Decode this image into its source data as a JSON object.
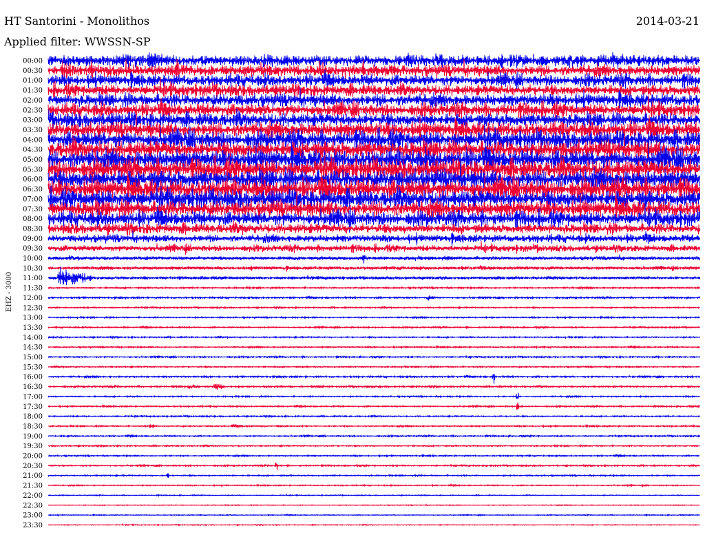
{
  "header": {
    "station": "HT Santorini - Monolithos",
    "date": "2014-03-21",
    "filter": "Applied filter: WWSSN-SP"
  },
  "chart_data": {
    "type": "line",
    "title": "HT Santorini - Monolithos",
    "date": "2014-03-21",
    "filter": "Applied filter: WWSSN-SP",
    "ylabel": "EHZ - 3000",
    "xlabel": "",
    "time_labels": [
      "00:00",
      "00:30",
      "01:00",
      "01:30",
      "02:00",
      "02:30",
      "03:00",
      "03:30",
      "04:00",
      "04:30",
      "05:00",
      "05:30",
      "06:00",
      "06:30",
      "07:00",
      "07:30",
      "08:00",
      "08:30",
      "09:00",
      "09:30",
      "10:00",
      "10:30",
      "11:00",
      "11:30",
      "12:00",
      "12:30",
      "13:00",
      "13:30",
      "14:00",
      "14:30",
      "15:00",
      "15:30",
      "16:00",
      "16:30",
      "17:00",
      "17:30",
      "18:00",
      "18:30",
      "19:00",
      "19:30",
      "20:00",
      "20:30",
      "21:00",
      "21:30",
      "22:00",
      "22:30",
      "23:00",
      "23:30"
    ],
    "trace_colors": [
      "#0000ee",
      "#ee0033"
    ],
    "line_amplitude": [
      9,
      9,
      9,
      9,
      10,
      10,
      11,
      12,
      13,
      14,
      15,
      15,
      15,
      15,
      14,
      13,
      11,
      8,
      6,
      5,
      3,
      2.5,
      2,
      1.2,
      1.2,
      1,
      1,
      1,
      1,
      1,
      1,
      1,
      1.2,
      1.2,
      1,
      1,
      1,
      1,
      1,
      1,
      1,
      1,
      1,
      0.8,
      0.6,
      0.6,
      0.6,
      0.6
    ],
    "events": [
      {
        "line": "11:00",
        "minute_offset": 0.5,
        "amplitude": 22,
        "duration_min": 1.5
      },
      {
        "line": "10:00",
        "minute_offset": 14.5,
        "amplitude": 10,
        "duration_min": 0.2
      },
      {
        "line": "12:00",
        "minute_offset": 17.5,
        "amplitude": 6,
        "duration_min": 0.3
      },
      {
        "line": "16:30",
        "minute_offset": 6.5,
        "amplitude": 5,
        "duration_min": 0.5
      },
      {
        "line": "16:30",
        "minute_offset": 7.7,
        "amplitude": 9,
        "duration_min": 0.4
      },
      {
        "line": "16:00",
        "minute_offset": 20.5,
        "amplitude": 18,
        "duration_min": 0.05
      },
      {
        "line": "17:00",
        "minute_offset": 21.6,
        "amplitude": 12,
        "duration_min": 0.05
      },
      {
        "line": "17:30",
        "minute_offset": 21.6,
        "amplitude": 14,
        "duration_min": 0.05
      },
      {
        "line": "18:30",
        "minute_offset": 4.7,
        "amplitude": 7,
        "duration_min": 0.2
      },
      {
        "line": "18:30",
        "minute_offset": 8.5,
        "amplitude": 6,
        "duration_min": 0.5
      },
      {
        "line": "20:30",
        "minute_offset": 10.5,
        "amplitude": 12,
        "duration_min": 0.05
      },
      {
        "line": "21:00",
        "minute_offset": 5.5,
        "amplitude": 6,
        "duration_min": 0.05
      }
    ]
  }
}
